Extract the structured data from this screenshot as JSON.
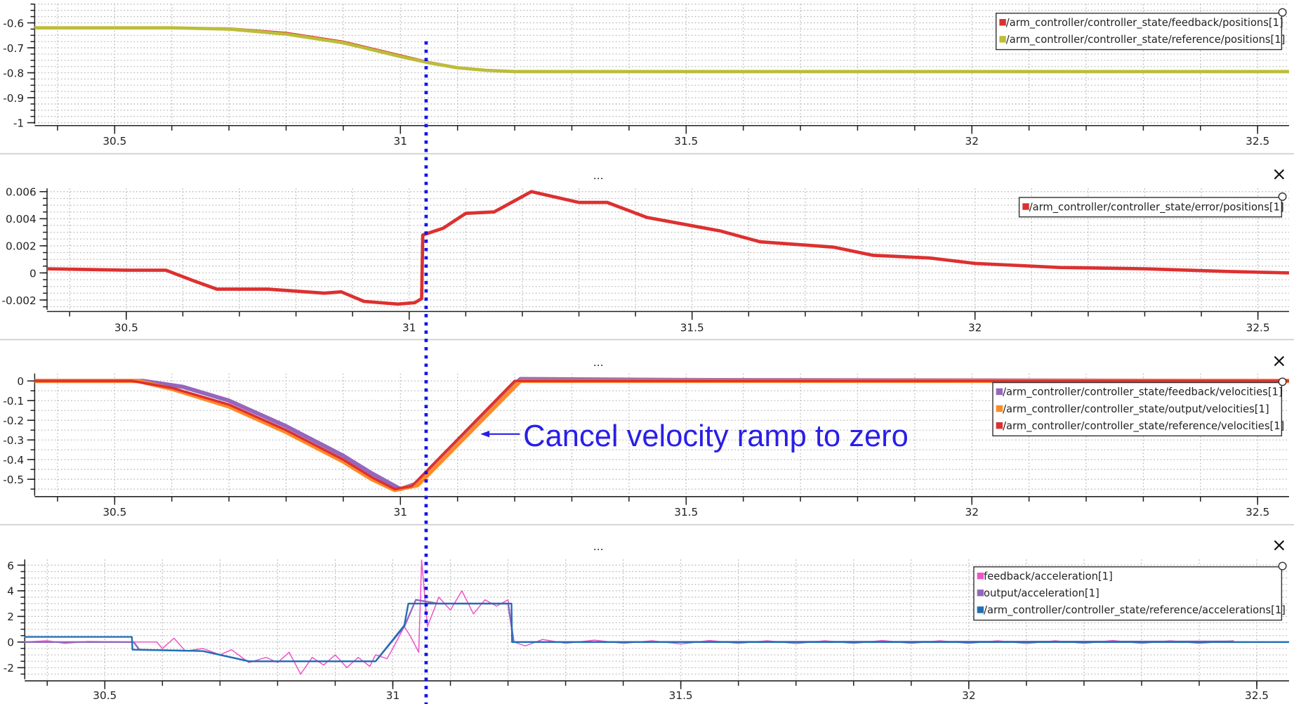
{
  "colors": {
    "red": "#dd3030",
    "olive": "#bcbd3a",
    "purple": "#9467bd",
    "orange": "#ff8a25",
    "pink": "#f055c8",
    "blue": "#1f6fb4",
    "annotation": "#2a1ee8",
    "marker_line": "#1414ee"
  },
  "panel_controls": {
    "menu_label": "...",
    "close_icon": "close-icon",
    "legend_handle_icon": "circle-handle-icon"
  },
  "annotation": {
    "text": "Cancel velocity ramp to zero",
    "marker_x": 31.045,
    "arrow_target": [
      31.14,
      -0.27
    ]
  },
  "chart_data": [
    {
      "type": "line",
      "xlim": [
        30.36,
        32.555
      ],
      "ylim": [
        -1.005,
        -0.525
      ],
      "xticks": [
        30.5,
        31,
        31.5,
        32,
        32.5
      ],
      "xtick_labels": [
        "30.5",
        "31",
        "31.5",
        "32",
        "32.5"
      ],
      "yticks": [
        -0.6,
        -0.7,
        -0.8,
        -0.9,
        -1
      ],
      "ytick_labels": [
        "-0.6",
        "-0.7",
        "-0.8",
        "-0.9",
        "-1"
      ],
      "grid": true,
      "legend": "top-right",
      "series": [
        {
          "name": "/arm_controller/controller_state/feedback/positions[1]",
          "color": "#dd3030",
          "points": [
            [
              30.36,
              -0.62
            ],
            [
              30.6,
              -0.62
            ],
            [
              30.7,
              -0.622
            ],
            [
              30.8,
              -0.64
            ],
            [
              30.9,
              -0.675
            ],
            [
              31.0,
              -0.73
            ],
            [
              31.05,
              -0.757
            ],
            [
              31.1,
              -0.778
            ],
            [
              31.15,
              -0.79
            ],
            [
              31.2,
              -0.797
            ],
            [
              31.53,
              -0.797
            ]
          ]
        },
        {
          "name": "/arm_controller/controller_state/reference/positions[1]",
          "color": "#bcbd3a",
          "points": [
            [
              30.36,
              -0.62
            ],
            [
              30.6,
              -0.62
            ],
            [
              30.7,
              -0.625
            ],
            [
              30.8,
              -0.645
            ],
            [
              30.9,
              -0.68
            ],
            [
              31.0,
              -0.735
            ],
            [
              31.05,
              -0.76
            ],
            [
              31.1,
              -0.78
            ],
            [
              31.15,
              -0.79
            ],
            [
              31.2,
              -0.795
            ],
            [
              32.555,
              -0.795
            ]
          ]
        }
      ]
    },
    {
      "type": "line",
      "xlim": [
        30.36,
        32.555
      ],
      "ylim": [
        -0.00273,
        0.00624
      ],
      "xticks": [
        30.5,
        31,
        31.5,
        32,
        32.5
      ],
      "xtick_labels": [
        "30.5",
        "31",
        "31.5",
        "32",
        "32.5"
      ],
      "yticks": [
        0.006,
        0.004,
        0.002,
        0,
        -0.002
      ],
      "ytick_labels": [
        "0.006",
        "0.004",
        "0.002",
        "0",
        "-0.002"
      ],
      "grid": true,
      "legend": "top-right",
      "series": [
        {
          "name": "/arm_controller/controller_state/error/positions[1]",
          "color": "#dd3030",
          "points": [
            [
              30.36,
              0.0003
            ],
            [
              30.5,
              0.0002
            ],
            [
              30.57,
              0.0002
            ],
            [
              30.62,
              -0.0006
            ],
            [
              30.66,
              -0.0012
            ],
            [
              30.75,
              -0.0012
            ],
            [
              30.85,
              -0.0015
            ],
            [
              30.88,
              -0.0014
            ],
            [
              30.92,
              -0.0021
            ],
            [
              30.98,
              -0.0023
            ],
            [
              31.01,
              -0.0022
            ],
            [
              31.022,
              -0.0019
            ],
            [
              31.024,
              0.0028
            ],
            [
              31.06,
              0.0033
            ],
            [
              31.1,
              0.0044
            ],
            [
              31.15,
              0.0045
            ],
            [
              31.216,
              0.006
            ],
            [
              31.3,
              0.0052
            ],
            [
              31.35,
              0.0052
            ],
            [
              31.42,
              0.0041
            ],
            [
              31.55,
              0.0031
            ],
            [
              31.62,
              0.0023
            ],
            [
              31.75,
              0.0019
            ],
            [
              31.82,
              0.0013
            ],
            [
              31.92,
              0.0011
            ],
            [
              32.0,
              0.0007
            ],
            [
              32.15,
              0.0004
            ],
            [
              32.3,
              0.0003
            ],
            [
              32.45,
              0.0001
            ],
            [
              32.555,
              0.0
            ]
          ]
        }
      ]
    },
    {
      "type": "line",
      "xlim": [
        30.36,
        32.555
      ],
      "ylim": [
        -0.584,
        0.038
      ],
      "xticks": [
        30.5,
        31,
        31.5,
        32,
        32.5
      ],
      "xtick_labels": [
        "30.5",
        "31",
        "31.5",
        "32",
        "32.5"
      ],
      "yticks": [
        0,
        -0.1,
        -0.2,
        -0.3,
        -0.4,
        -0.5
      ],
      "ytick_labels": [
        "0",
        "-0.1",
        "-0.2",
        "-0.3",
        "-0.4",
        "-0.5"
      ],
      "grid": true,
      "legend": "top-right",
      "series": [
        {
          "name": "/arm_controller/controller_state/feedback/velocities[1]",
          "color": "#9467bd",
          "points": [
            [
              30.36,
              0
            ],
            [
              30.55,
              0
            ],
            [
              30.62,
              -0.03
            ],
            [
              30.7,
              -0.1
            ],
            [
              30.8,
              -0.23
            ],
            [
              30.9,
              -0.38
            ],
            [
              30.95,
              -0.47
            ],
            [
              31.0,
              -0.55
            ],
            [
              31.03,
              -0.52
            ],
            [
              31.21,
              0.01
            ],
            [
              31.5,
              0.005
            ],
            [
              32.555,
              0.0
            ]
          ]
        },
        {
          "name": "/arm_controller/controller_state/output/velocities[1]",
          "color": "#ff8a25",
          "points": [
            [
              30.36,
              0
            ],
            [
              30.54,
              0
            ],
            [
              30.6,
              -0.04
            ],
            [
              30.7,
              -0.13
            ],
            [
              30.8,
              -0.26
            ],
            [
              30.9,
              -0.41
            ],
            [
              30.95,
              -0.5
            ],
            [
              30.99,
              -0.555
            ],
            [
              31.03,
              -0.53
            ],
            [
              31.21,
              0
            ],
            [
              32.555,
              0
            ]
          ]
        },
        {
          "name": "/arm_controller/controller_state/reference/velocities[1]",
          "color": "#dd3030",
          "points": [
            [
              30.36,
              0
            ],
            [
              30.53,
              0
            ],
            [
              30.6,
              -0.035
            ],
            [
              30.7,
              -0.12
            ],
            [
              30.8,
              -0.25
            ],
            [
              30.9,
              -0.4
            ],
            [
              30.95,
              -0.49
            ],
            [
              30.99,
              -0.55
            ],
            [
              31.02,
              -0.535
            ],
            [
              31.2,
              0
            ],
            [
              32.555,
              0
            ]
          ]
        }
      ]
    },
    {
      "type": "line",
      "xlim": [
        30.361,
        32.556
      ],
      "ylim": [
        -2.9,
        6.45
      ],
      "xticks": [
        30.5,
        31,
        31.5,
        32,
        32.5
      ],
      "xtick_labels": [
        "30.5",
        "31",
        "31.5",
        "32",
        "32.5"
      ],
      "yticks": [
        6,
        4,
        2,
        0,
        -2
      ],
      "ytick_labels": [
        "6",
        "4",
        "2",
        "0",
        "-2"
      ],
      "grid": true,
      "legend": "top-right",
      "series": [
        {
          "name": "feedback/acceleration[1]",
          "color": "#f055c8",
          "points": [
            [
              30.36,
              0
            ],
            [
              30.4,
              0.1
            ],
            [
              30.43,
              -0.1
            ],
            [
              30.47,
              0.05
            ],
            [
              30.55,
              0
            ],
            [
              30.59,
              0
            ],
            [
              30.6,
              -0.5
            ],
            [
              30.62,
              0.3
            ],
            [
              30.64,
              -0.7
            ],
            [
              30.67,
              -0.5
            ],
            [
              30.7,
              -1.0
            ],
            [
              30.72,
              -0.6
            ],
            [
              30.75,
              -1.6
            ],
            [
              30.78,
              -1.2
            ],
            [
              30.8,
              -1.6
            ],
            [
              30.82,
              -0.8
            ],
            [
              30.84,
              -2.5
            ],
            [
              30.86,
              -1.2
            ],
            [
              30.88,
              -1.8
            ],
            [
              30.9,
              -1.0
            ],
            [
              30.92,
              -2.0
            ],
            [
              30.94,
              -1.2
            ],
            [
              30.96,
              -1.9
            ],
            [
              30.97,
              -1.0
            ],
            [
              30.99,
              -1.3
            ],
            [
              31.0,
              -0.5
            ],
            [
              31.02,
              1.2
            ],
            [
              31.03,
              0.5
            ],
            [
              31.045,
              -0.8
            ],
            [
              31.05,
              6.4
            ],
            [
              31.06,
              1.2
            ],
            [
              31.08,
              3.5
            ],
            [
              31.1,
              2.5
            ],
            [
              31.12,
              4.0
            ],
            [
              31.14,
              2.2
            ],
            [
              31.16,
              3.3
            ],
            [
              31.18,
              2.8
            ],
            [
              31.2,
              3.3
            ],
            [
              31.21,
              0
            ],
            [
              31.23,
              -0.3
            ],
            [
              31.26,
              0.2
            ],
            [
              31.3,
              -0.1
            ],
            [
              31.35,
              0.15
            ],
            [
              31.4,
              -0.1
            ],
            [
              31.45,
              0.1
            ],
            [
              31.5,
              -0.15
            ],
            [
              31.55,
              0.12
            ],
            [
              31.6,
              -0.1
            ],
            [
              31.65,
              0.1
            ],
            [
              31.7,
              -0.12
            ],
            [
              31.75,
              0.1
            ],
            [
              31.8,
              -0.1
            ],
            [
              31.85,
              0.12
            ],
            [
              31.9,
              -0.1
            ],
            [
              31.95,
              0.1
            ],
            [
              32.0,
              -0.1
            ],
            [
              32.05,
              0.1
            ],
            [
              32.1,
              -0.12
            ],
            [
              32.15,
              0.1
            ],
            [
              32.2,
              -0.1
            ],
            [
              32.25,
              0.12
            ],
            [
              32.3,
              -0.1
            ],
            [
              32.35,
              0.1
            ],
            [
              32.4,
              -0.1
            ],
            [
              32.46,
              0.1
            ]
          ]
        },
        {
          "name": "output/acceleration[1]",
          "color": "#9467bd",
          "points": [
            [
              30.36,
              0
            ],
            [
              30.55,
              0
            ],
            [
              30.56,
              -0.6
            ],
            [
              30.67,
              -0.7
            ],
            [
              30.75,
              -1.5
            ],
            [
              30.97,
              -1.5
            ],
            [
              31.02,
              1.2
            ],
            [
              31.04,
              3.3
            ],
            [
              31.08,
              3.0
            ],
            [
              31.2,
              3.0
            ],
            [
              31.21,
              0
            ],
            [
              32.46,
              0.05
            ]
          ]
        },
        {
          "name": "/arm_controller/controller_state/reference/accelerations[1]",
          "color": "#1f6fb4",
          "points": [
            [
              30.36,
              0.4
            ],
            [
              30.547,
              0.4
            ],
            [
              30.548,
              -0.6
            ],
            [
              30.67,
              -0.7
            ],
            [
              30.75,
              -1.5
            ],
            [
              30.97,
              -1.5
            ],
            [
              31.02,
              1.3
            ],
            [
              31.027,
              3.0
            ],
            [
              31.206,
              3.0
            ],
            [
              31.207,
              0
            ],
            [
              32.556,
              0
            ]
          ]
        }
      ]
    }
  ]
}
